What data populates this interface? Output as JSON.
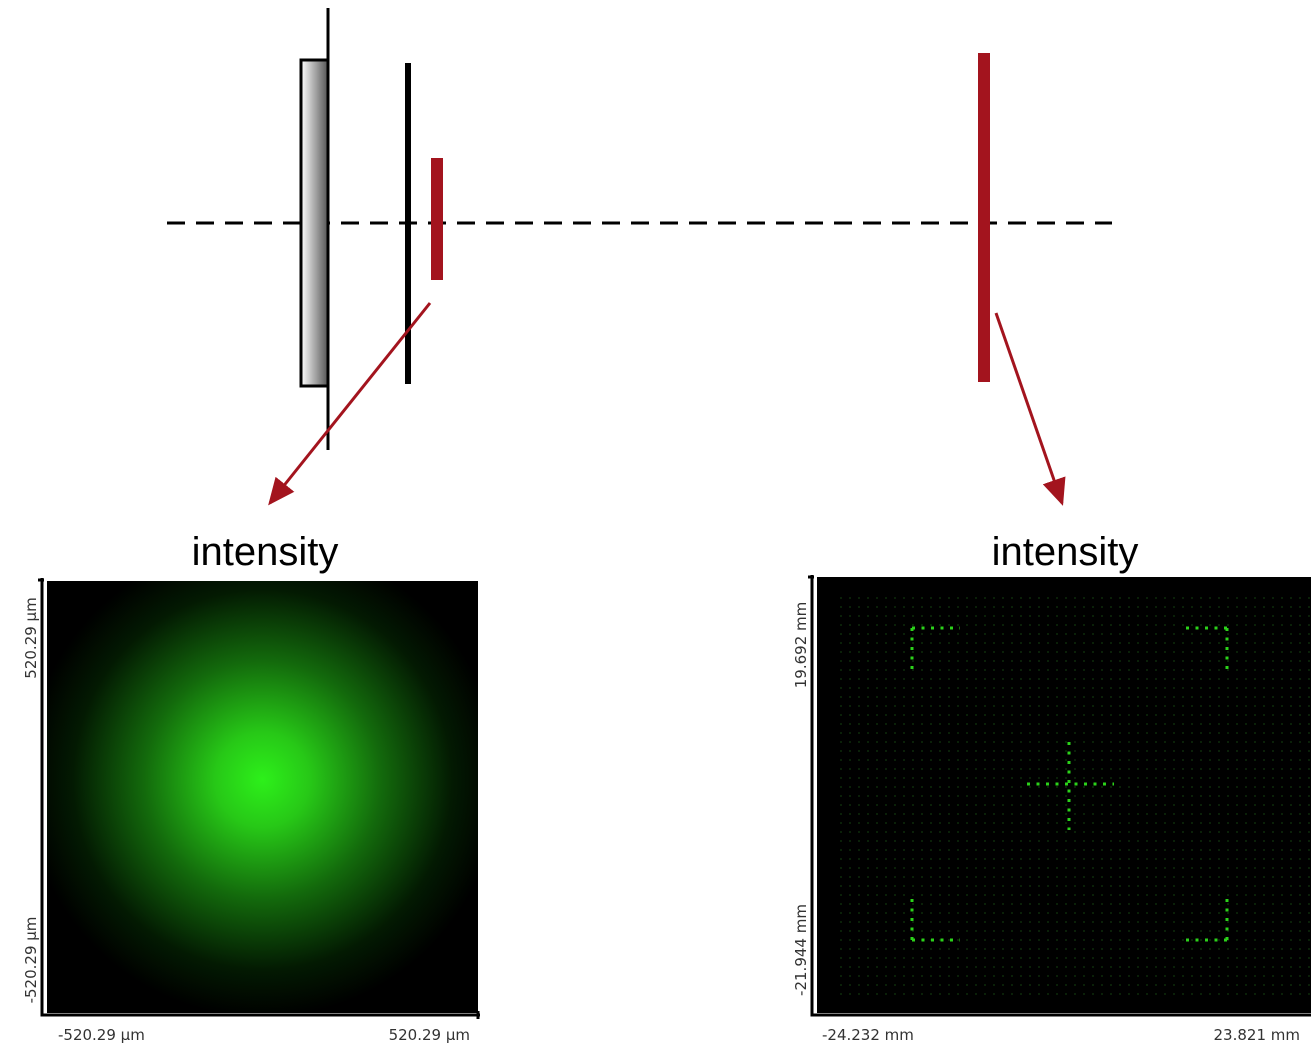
{
  "panels": [
    {
      "title": "intensity",
      "y_max": "520.29 µm",
      "y_min": "-520.29 µm",
      "x_min": "-520.29 µm",
      "x_max": "520.29 µm"
    },
    {
      "title": "intensity",
      "y_max": "19.692 mm",
      "y_min": "-21.944 mm",
      "x_min": "-24.232 mm",
      "x_max": "23.821 mm"
    }
  ]
}
